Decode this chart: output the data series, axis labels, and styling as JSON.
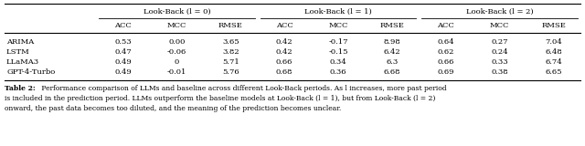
{
  "col_groups": [
    {
      "label": "Look-Back (l = 0)"
    },
    {
      "label": "Look-Back (l = 1)"
    },
    {
      "label": "Look-Back (l = 2)"
    }
  ],
  "sub_headers": [
    "ACC",
    "MCC",
    "RMSE",
    "ACC",
    "MCC",
    "RMSE",
    "ACC",
    "MCC",
    "RMSE"
  ],
  "rows": [
    {
      "name": "ARIMA",
      "values": [
        "0.53",
        "0.00",
        "3.65",
        "0.42",
        "-0.17",
        "8.98",
        "0.64",
        "0.27",
        "7.04"
      ]
    },
    {
      "name": "LSTM",
      "values": [
        "0.47",
        "-0.06",
        "3.82",
        "0.42",
        "-0.15",
        "6.42",
        "0.62",
        "0.24",
        "6.48"
      ]
    },
    {
      "name": "LLaMA3",
      "values": [
        "0.49",
        "0",
        "5.71",
        "0.66",
        "0.34",
        "6.3",
        "0.66",
        "0.33",
        "6.74"
      ]
    },
    {
      "name": "GPT-4-Turbo",
      "values": [
        "0.49",
        "-0.01",
        "5.76",
        "0.68",
        "0.36",
        "6.68",
        "0.69",
        "0.38",
        "6.65"
      ]
    }
  ],
  "caption_bold": "Table 2:",
  "caption_normal": " Performance comparison of LLMs and baseline across different Look-Back periods. As l increases, more past period",
  "caption_line2": "is included in the prediction period. LLMs outperform the baseline models at Look-Back (l = 1), but from Look-Back (l = 2)",
  "caption_line3": "onward, the past data becomes too diluted, and the meaning of the prediction becomes unclear.",
  "bg_color": "#ffffff",
  "line_color": "#000000",
  "text_color": "#000000"
}
